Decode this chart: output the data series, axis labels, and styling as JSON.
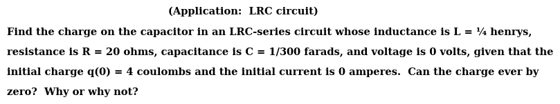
{
  "title": "(Application:  LRC circuit)",
  "line1": "Find the charge on the capacitor in an LRC-series circuit whose inductance is L = ¼ henrys,",
  "line2": "resistance is R = 20 ohms, capacitance is C = 1/300 farads, and voltage is 0 volts, given that the",
  "line3": "initial charge q(0) = 4 coulombs and the initial current is 0 amperes.  Can the charge ever by",
  "line4": "zero?  Why or why not?",
  "background_color": "#ffffff",
  "text_color": "#000000",
  "font_size": 10.5,
  "title_font_size": 10.5,
  "font_family": "DejaVu Serif",
  "font_weight": "bold"
}
